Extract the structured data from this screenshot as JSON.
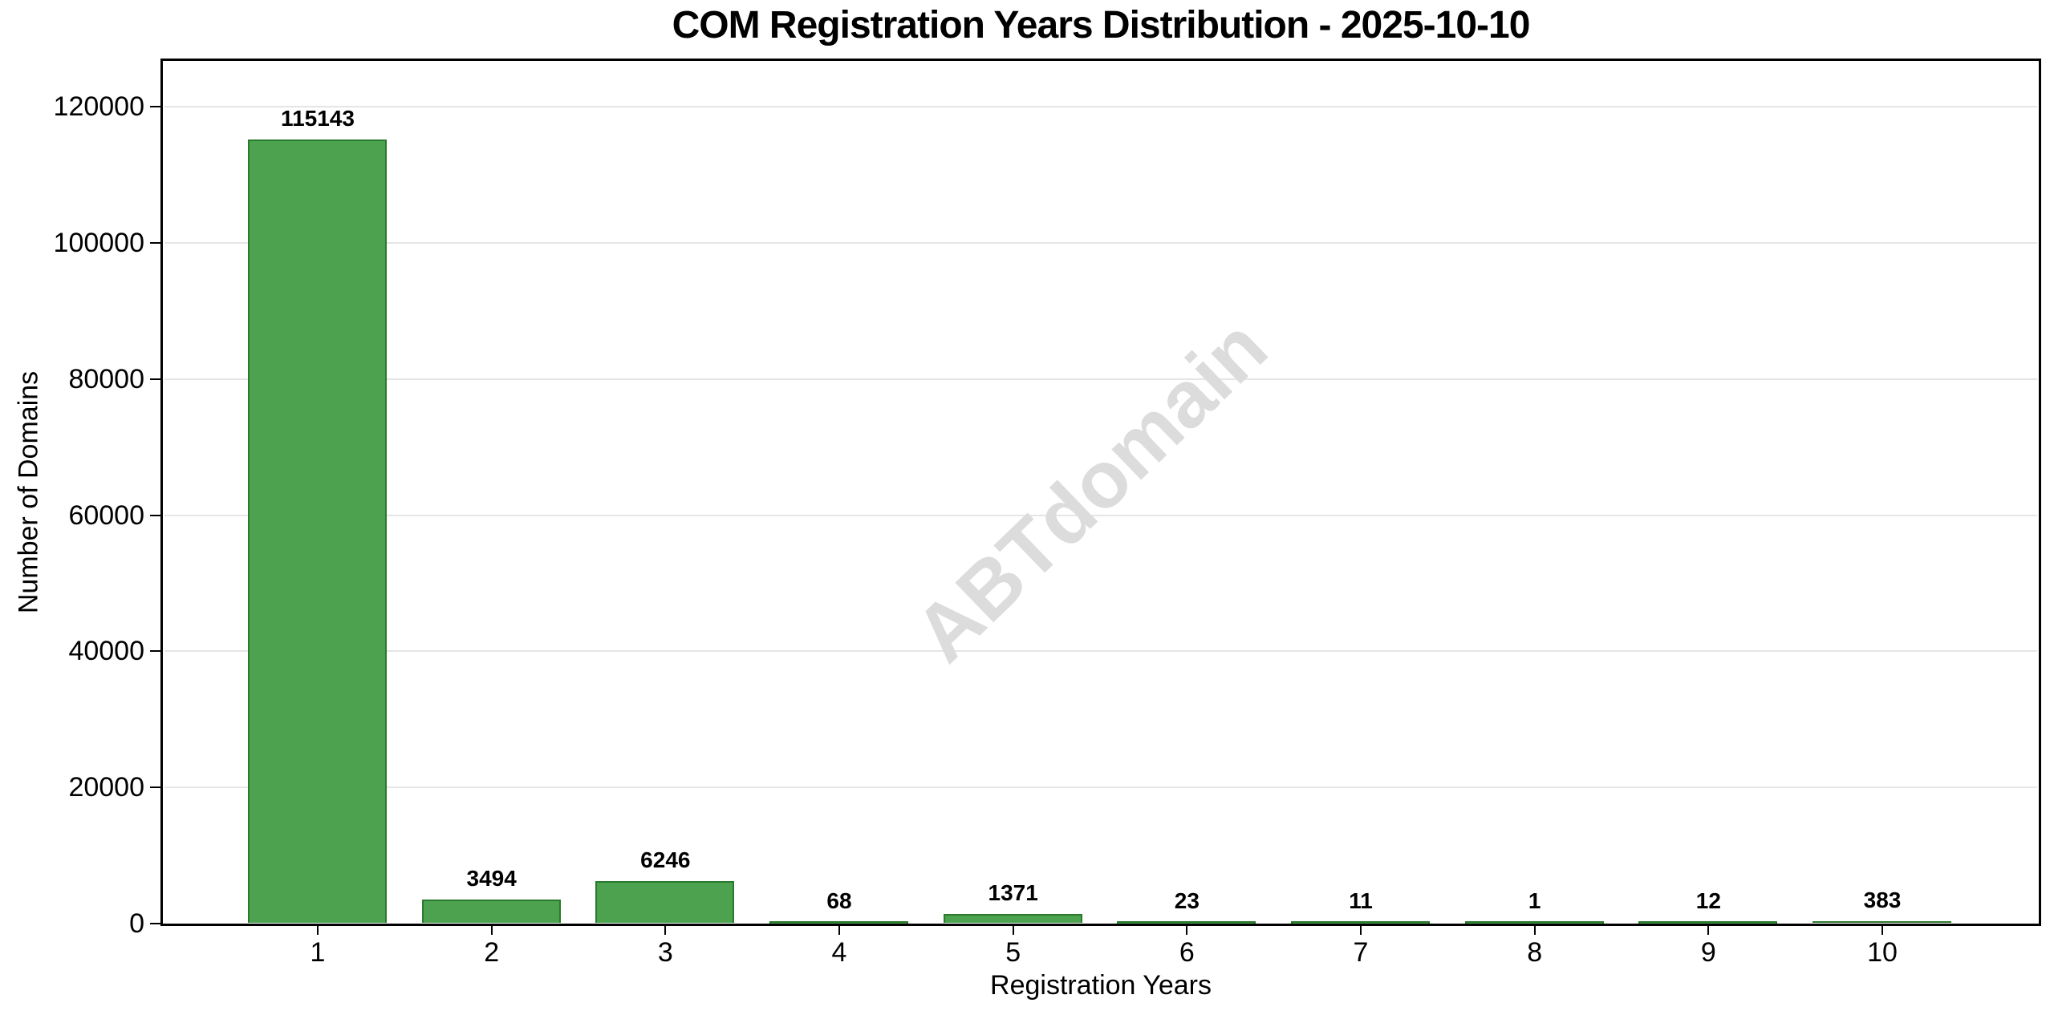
{
  "chart_data": {
    "type": "bar",
    "title": "COM Registration Years Distribution - 2025-10-10",
    "xlabel": "Registration Years",
    "ylabel": "Number of Domains",
    "categories": [
      "1",
      "2",
      "3",
      "4",
      "5",
      "6",
      "7",
      "8",
      "9",
      "10"
    ],
    "values": [
      115143,
      3494,
      6246,
      68,
      1371,
      23,
      11,
      1,
      12,
      383
    ],
    "bar_value_labels": [
      "115143",
      "3494",
      "6246",
      "68",
      "1371",
      "23",
      "11",
      "1",
      "12",
      "383"
    ],
    "yticks": [
      0,
      20000,
      40000,
      60000,
      80000,
      100000,
      120000
    ],
    "ytick_labels": [
      "0",
      "20000",
      "40000",
      "60000",
      "80000",
      "100000",
      "120000"
    ],
    "ylim": [
      0,
      126700
    ],
    "grid": "horizontal",
    "legend": "none",
    "watermark": "ABTdomain",
    "colors": {
      "bar_fill": "#4ca24e",
      "bar_edge": "#2a7a2e",
      "grid_line": "#e5e5e5",
      "axis": "#000000",
      "watermark": "#dcdcdc",
      "background": "#ffffff"
    }
  }
}
